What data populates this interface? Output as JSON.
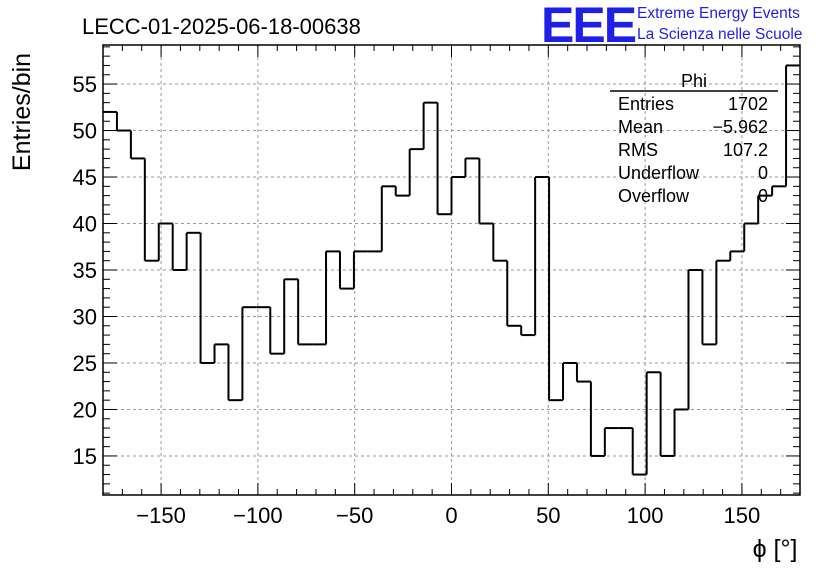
{
  "run_title": "LECC-01-2025-06-18-00638",
  "logo": {
    "text": "EEE",
    "line1": "Extreme Energy Events",
    "line2": "La Scienza nelle Scuole",
    "color": "#1f1fe6"
  },
  "stats": {
    "name": "Phi",
    "rows": [
      {
        "label": "Entries",
        "value": "1702"
      },
      {
        "label": "Mean",
        "value": "−5.962"
      },
      {
        "label": "RMS",
        "value": "107.2"
      },
      {
        "label": "Underflow",
        "value": "0"
      },
      {
        "label": "Overflow",
        "value": "0"
      }
    ]
  },
  "chart_data": {
    "type": "bar",
    "histogram": "step",
    "title": "LECC-01-2025-06-18-00638",
    "xlabel": "ϕ [°]",
    "ylabel": "Entries/bin",
    "xlim": [
      -180,
      180
    ],
    "ylim": [
      10.8,
      59.2
    ],
    "bin_width": 7.2,
    "bin_edges_start": -180,
    "values": [
      52,
      50,
      47,
      36,
      40,
      35,
      39,
      25,
      27,
      21,
      31,
      31,
      26,
      34,
      27,
      27,
      37,
      33,
      37,
      37,
      44,
      43,
      48,
      53,
      41,
      45,
      47,
      40,
      36,
      29,
      28,
      45,
      21,
      25,
      23,
      15,
      18,
      18,
      13,
      24,
      15,
      20,
      35,
      27,
      36,
      37,
      40,
      43,
      44,
      57
    ],
    "x_ticks": [
      -150,
      -100,
      -50,
      0,
      50,
      100,
      150
    ],
    "x_tick_labels": [
      "−150",
      "−100",
      "−50",
      "0",
      "50",
      "100",
      "150"
    ],
    "y_ticks": [
      15,
      20,
      25,
      30,
      35,
      40,
      45,
      50,
      55
    ],
    "y_tick_labels": [
      "15",
      "20",
      "25",
      "30",
      "35",
      "40",
      "45",
      "50",
      "55"
    ],
    "grid": true,
    "line_color": "#000000"
  }
}
